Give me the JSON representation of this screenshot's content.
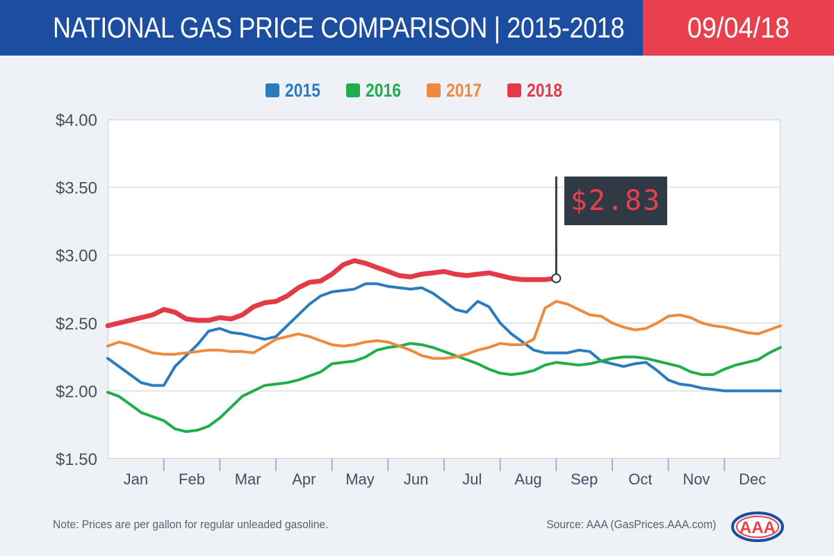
{
  "header": {
    "title": "NATIONAL GAS PRICE COMPARISON | 2015-2018",
    "date": "09/04/18"
  },
  "colors": {
    "header_blue": "#1b4da0",
    "header_red": "#e8414d",
    "2015": "#2b7bbf",
    "2016": "#1fae4b",
    "2017": "#ec8a3f",
    "2018": "#e23b47"
  },
  "annotation": {
    "label": "$2.83"
  },
  "footer": {
    "note": "Note: Prices are per gallon for regular unleaded gasoline.",
    "source": "Source: AAA (GasPrices.AAA.com)",
    "logo_text": "AAA"
  },
  "chart_data": {
    "type": "line",
    "title": "",
    "xlabel": "",
    "ylabel": "",
    "ylim": [
      1.5,
      4.0
    ],
    "xlim": [
      0,
      12
    ],
    "yticks": [
      "$4.00",
      "$3.50",
      "$3.00",
      "$2.50",
      "$2.00",
      "$1.50"
    ],
    "ytick_values": [
      4.0,
      3.5,
      3.0,
      2.5,
      2.0,
      1.5
    ],
    "categories": [
      "Jan",
      "Feb",
      "Mar",
      "Apr",
      "May",
      "Jun",
      "Jul",
      "Aug",
      "Sep",
      "Oct",
      "Nov",
      "Dec"
    ],
    "grid": true,
    "legend_position": "top-center",
    "annotation": {
      "series": "2018",
      "x": 8.0,
      "y": 2.83,
      "label": "$2.83"
    },
    "series": [
      {
        "name": "2015",
        "x": [
          0,
          0.2,
          0.4,
          0.6,
          0.8,
          1.0,
          1.2,
          1.4,
          1.6,
          1.8,
          2.0,
          2.2,
          2.4,
          2.6,
          2.8,
          3.0,
          3.2,
          3.4,
          3.6,
          3.8,
          4.0,
          4.2,
          4.4,
          4.6,
          4.8,
          5.0,
          5.2,
          5.4,
          5.6,
          5.8,
          6.0,
          6.2,
          6.4,
          6.6,
          6.8,
          7.0,
          7.2,
          7.4,
          7.6,
          7.8,
          8.0,
          8.2,
          8.4,
          8.6,
          8.8,
          9.0,
          9.2,
          9.4,
          9.6,
          9.8,
          10.0,
          10.2,
          10.4,
          10.6,
          10.8,
          11.0,
          11.2,
          11.4,
          11.6,
          11.8,
          12.0
        ],
        "values": [
          2.24,
          2.18,
          2.12,
          2.06,
          2.04,
          2.04,
          2.18,
          2.26,
          2.34,
          2.44,
          2.46,
          2.43,
          2.42,
          2.4,
          2.38,
          2.4,
          2.48,
          2.56,
          2.64,
          2.7,
          2.73,
          2.74,
          2.75,
          2.79,
          2.79,
          2.77,
          2.76,
          2.75,
          2.76,
          2.72,
          2.66,
          2.6,
          2.58,
          2.66,
          2.62,
          2.5,
          2.42,
          2.36,
          2.3,
          2.28,
          2.28,
          2.28,
          2.3,
          2.29,
          2.22,
          2.2,
          2.18,
          2.2,
          2.21,
          2.15,
          2.08,
          2.05,
          2.04,
          2.02,
          2.01,
          2.0,
          2.0,
          2.0,
          2.0,
          2.0,
          2.0
        ]
      },
      {
        "name": "2016",
        "x": [
          0,
          0.2,
          0.4,
          0.6,
          0.8,
          1.0,
          1.2,
          1.4,
          1.6,
          1.8,
          2.0,
          2.2,
          2.4,
          2.6,
          2.8,
          3.0,
          3.2,
          3.4,
          3.6,
          3.8,
          4.0,
          4.2,
          4.4,
          4.6,
          4.8,
          5.0,
          5.2,
          5.4,
          5.6,
          5.8,
          6.0,
          6.2,
          6.4,
          6.6,
          6.8,
          7.0,
          7.2,
          7.4,
          7.6,
          7.8,
          8.0,
          8.2,
          8.4,
          8.6,
          8.8,
          9.0,
          9.2,
          9.4,
          9.6,
          9.8,
          10.0,
          10.2,
          10.4,
          10.6,
          10.8,
          11.0,
          11.2,
          11.4,
          11.6,
          11.8,
          12.0
        ],
        "values": [
          1.99,
          1.96,
          1.9,
          1.84,
          1.81,
          1.78,
          1.72,
          1.7,
          1.71,
          1.74,
          1.8,
          1.88,
          1.96,
          2.0,
          2.04,
          2.05,
          2.06,
          2.08,
          2.11,
          2.14,
          2.2,
          2.21,
          2.22,
          2.25,
          2.3,
          2.32,
          2.33,
          2.35,
          2.34,
          2.32,
          2.29,
          2.26,
          2.23,
          2.2,
          2.16,
          2.13,
          2.12,
          2.13,
          2.15,
          2.19,
          2.21,
          2.2,
          2.19,
          2.2,
          2.22,
          2.24,
          2.25,
          2.25,
          2.24,
          2.22,
          2.2,
          2.18,
          2.14,
          2.12,
          2.12,
          2.16,
          2.19,
          2.21,
          2.23,
          2.28,
          2.32
        ]
      },
      {
        "name": "2017",
        "x": [
          0,
          0.2,
          0.4,
          0.6,
          0.8,
          1.0,
          1.2,
          1.4,
          1.6,
          1.8,
          2.0,
          2.2,
          2.4,
          2.6,
          2.8,
          3.0,
          3.2,
          3.4,
          3.6,
          3.8,
          4.0,
          4.2,
          4.4,
          4.6,
          4.8,
          5.0,
          5.2,
          5.4,
          5.6,
          5.8,
          6.0,
          6.2,
          6.4,
          6.6,
          6.8,
          7.0,
          7.2,
          7.4,
          7.6,
          7.8,
          8.0,
          8.2,
          8.4,
          8.6,
          8.8,
          9.0,
          9.2,
          9.4,
          9.6,
          9.8,
          10.0,
          10.2,
          10.4,
          10.6,
          10.8,
          11.0,
          11.2,
          11.4,
          11.6,
          11.8,
          12.0
        ],
        "values": [
          2.33,
          2.36,
          2.34,
          2.31,
          2.28,
          2.27,
          2.27,
          2.28,
          2.29,
          2.3,
          2.3,
          2.29,
          2.29,
          2.28,
          2.33,
          2.38,
          2.4,
          2.42,
          2.4,
          2.37,
          2.34,
          2.33,
          2.34,
          2.36,
          2.37,
          2.36,
          2.33,
          2.3,
          2.26,
          2.24,
          2.24,
          2.25,
          2.27,
          2.3,
          2.32,
          2.35,
          2.34,
          2.34,
          2.38,
          2.61,
          2.66,
          2.64,
          2.6,
          2.56,
          2.55,
          2.5,
          2.47,
          2.45,
          2.46,
          2.5,
          2.55,
          2.56,
          2.54,
          2.5,
          2.48,
          2.47,
          2.45,
          2.43,
          2.42,
          2.45,
          2.48
        ]
      },
      {
        "name": "2018",
        "x": [
          0,
          0.2,
          0.4,
          0.6,
          0.8,
          1.0,
          1.2,
          1.4,
          1.6,
          1.8,
          2.0,
          2.2,
          2.4,
          2.6,
          2.8,
          3.0,
          3.2,
          3.4,
          3.6,
          3.8,
          4.0,
          4.2,
          4.4,
          4.6,
          4.8,
          5.0,
          5.2,
          5.4,
          5.6,
          5.8,
          6.0,
          6.2,
          6.4,
          6.6,
          6.8,
          7.0,
          7.2,
          7.4,
          7.6,
          7.8,
          8.0
        ],
        "values": [
          2.48,
          2.5,
          2.52,
          2.54,
          2.56,
          2.6,
          2.58,
          2.53,
          2.52,
          2.52,
          2.54,
          2.53,
          2.56,
          2.62,
          2.65,
          2.66,
          2.7,
          2.76,
          2.8,
          2.81,
          2.86,
          2.93,
          2.96,
          2.94,
          2.91,
          2.88,
          2.85,
          2.84,
          2.86,
          2.87,
          2.88,
          2.86,
          2.85,
          2.86,
          2.87,
          2.85,
          2.83,
          2.82,
          2.82,
          2.82,
          2.83
        ]
      }
    ]
  }
}
